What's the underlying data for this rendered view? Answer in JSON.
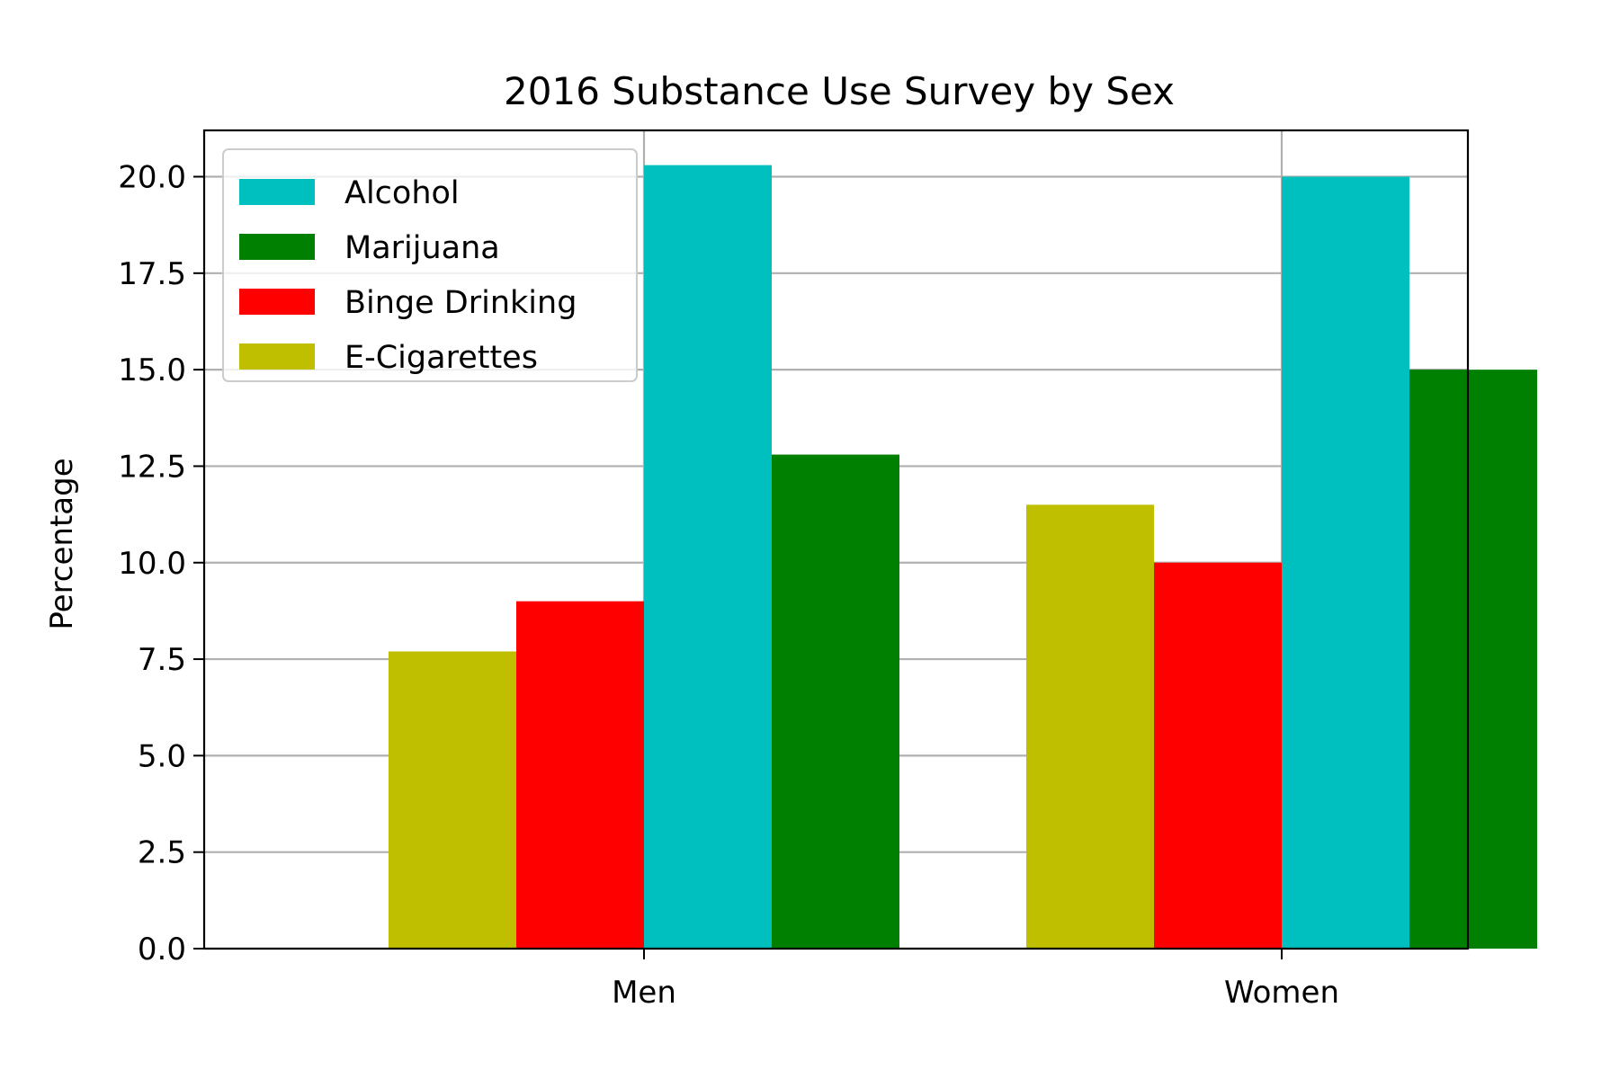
{
  "chart_data": {
    "type": "bar",
    "title": "2016 Substance Use Survey by Sex",
    "xlabel": "",
    "ylabel": "Percentage",
    "categories": [
      "Men",
      "Women"
    ],
    "ylim": [
      0,
      21.2
    ],
    "yticks": [
      "0.0",
      "2.5",
      "5.0",
      "7.5",
      "10.0",
      "12.5",
      "15.0",
      "17.5",
      "20.0"
    ],
    "grid": true,
    "legend_position": "upper-left",
    "series": [
      {
        "name": "E-Cigarettes",
        "color": "#bfbf00",
        "values": [
          7.7,
          11.5
        ]
      },
      {
        "name": "Binge Drinking",
        "color": "#ff0000",
        "values": [
          9.0,
          10.0
        ]
      },
      {
        "name": "Alcohol",
        "color": "#00bfbf",
        "values": [
          20.3,
          20.0
        ]
      },
      {
        "name": "Marijuana",
        "color": "#008000",
        "values": [
          12.8,
          15.0
        ]
      }
    ],
    "legend_order": [
      "Alcohol",
      "Marijuana",
      "Binge Drinking",
      "E-Cigarettes"
    ]
  }
}
